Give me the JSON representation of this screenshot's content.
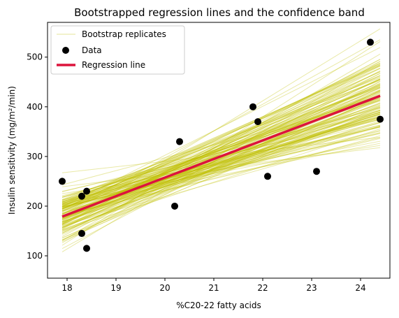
{
  "chart_data": {
    "type": "line",
    "title": "Bootstrapped regression lines and the confidence band",
    "xlabel": "%C20-22 fatty acids",
    "ylabel": "Insulin sensitivity (mg/m²/min)",
    "xlim": [
      17.6,
      24.6
    ],
    "ylim": [
      55,
      570
    ],
    "x_ticks": [
      18,
      19,
      20,
      21,
      22,
      23,
      24
    ],
    "y_ticks": [
      100,
      200,
      300,
      400,
      500
    ],
    "grid": false,
    "legend_position": "top-left",
    "colors": {
      "bootstrap": "#bfbf00",
      "data": "#000000",
      "regression": "#dc143c"
    },
    "data_points": {
      "name": "Data",
      "x": [
        17.9,
        18.3,
        18.3,
        18.4,
        18.4,
        20.2,
        20.3,
        21.8,
        21.9,
        22.1,
        23.1,
        24.2,
        24.4
      ],
      "y": [
        250,
        220,
        145,
        230,
        115,
        200,
        330,
        400,
        370,
        260,
        270,
        530,
        375
      ]
    },
    "regression_line": {
      "name": "Regression line",
      "x": [
        17.9,
        24.4
      ],
      "y": [
        179,
        422
      ]
    },
    "bootstrap": {
      "name": "Bootstrap replicates",
      "x_start": 17.9,
      "x_end": 24.4,
      "count": 150
    }
  }
}
